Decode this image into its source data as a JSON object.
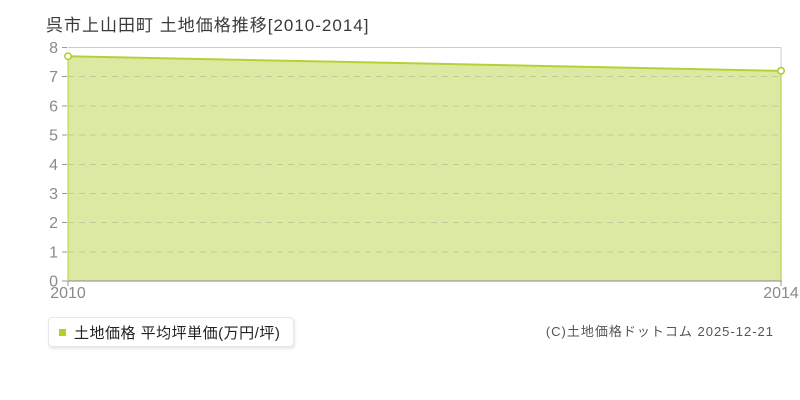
{
  "header": {
    "title": "呉市上山田町 土地価格推移[2010-2014]"
  },
  "chart_data": {
    "type": "area",
    "title": "呉市上山田町 土地価格推移[2010-2014]",
    "x": [
      2010,
      2014
    ],
    "x_tick_labels": [
      "2010",
      "2014"
    ],
    "series": [
      {
        "name": "土地価格 平均坪単価(万円/坪)",
        "values": [
          7.7,
          7.2
        ]
      }
    ],
    "ylim": [
      0,
      8
    ],
    "y_ticks": [
      0,
      1,
      2,
      3,
      4,
      5,
      6,
      7,
      8
    ],
    "grid": "horizontal-dashed",
    "legend_position": "bottom-left",
    "colors": {
      "area_fill": "#dce9a2",
      "line": "#b3d237",
      "marker_fill": "#ffffff",
      "marker_stroke": "#a9cd2d",
      "gridline": "#808080",
      "plot_border": "#cccccc",
      "axis_line": "#888888",
      "tick": "#999999",
      "tick_label": "#8a8a8a"
    }
  },
  "legend": {
    "label": "土地価格 平均坪単価(万円/坪)",
    "marker_color": "#b2d124"
  },
  "footer": {
    "copyright": "(C)土地価格ドットコム 2025-12-21"
  }
}
